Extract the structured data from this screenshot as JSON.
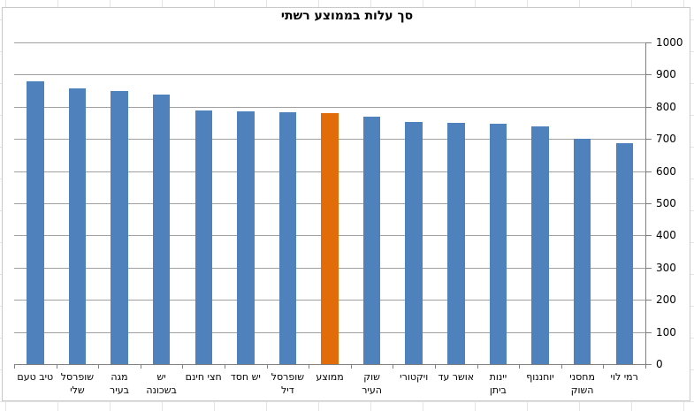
{
  "chart_data": {
    "type": "bar",
    "title": "סך עלות בממוצע רשתי",
    "categories": [
      "טיב טעם",
      "שופרסל\nשלי",
      "מגה\nבעיר",
      "יש\nבשכונה",
      "חצי חינם",
      "יש חסד",
      "שופרסל\nדיל",
      "ממוצע",
      "שוק\nהעיר",
      "ויקטורי",
      "אושר עד",
      "יינות\nביתן",
      "יוחננוף",
      "מחסני\nהשוק",
      "רמי לוי"
    ],
    "values": [
      880,
      858,
      849,
      838,
      789,
      787,
      784,
      780,
      770,
      752,
      750,
      747,
      738,
      701,
      686
    ],
    "highlight": {
      "index": 7,
      "label": "ממוצע"
    },
    "colors": {
      "bar": "#4F81BD",
      "highlight": "#E36C0A",
      "gridline": "#A0A0A0",
      "axis": "#808080"
    },
    "xlabel": "",
    "ylabel": "",
    "ylim": [
      0,
      1000
    ],
    "y_ticks": [
      0,
      100,
      200,
      300,
      400,
      500,
      600,
      700,
      800,
      900,
      1000
    ],
    "y_axis_side": "right",
    "grid": true,
    "legend": false,
    "category_order": "left-to-right",
    "text_direction": "rtl"
  }
}
